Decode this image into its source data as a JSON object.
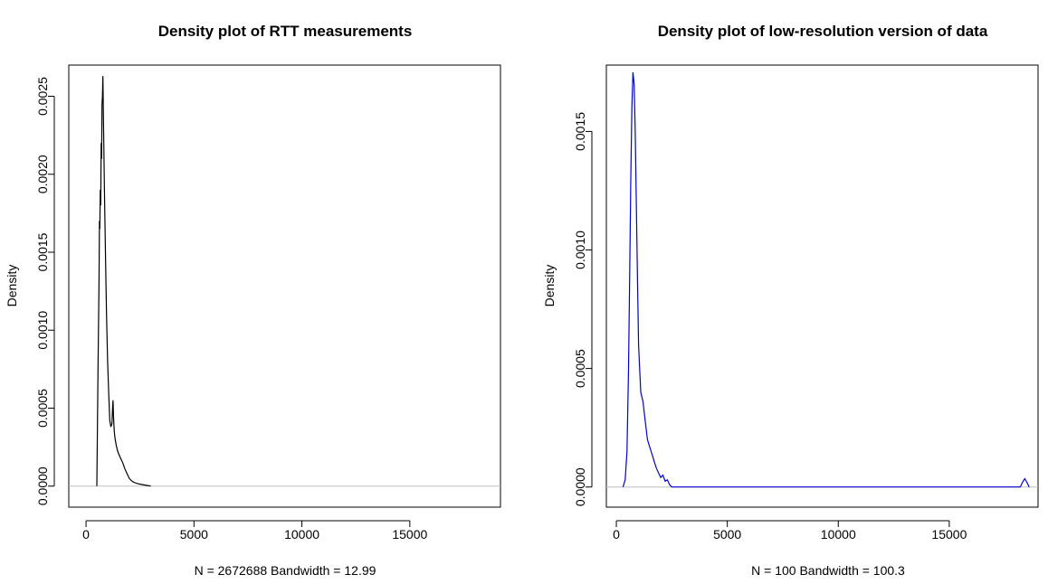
{
  "chart_data": [
    {
      "type": "line",
      "title": "Density plot of RTT measurements",
      "xlabel": "N = 2672688   Bandwidth = 12.99",
      "ylabel": "Density",
      "xlim": [
        -800,
        19200
      ],
      "ylim": [
        -0.000135,
        0.0027
      ],
      "x_ticks": [
        0,
        5000,
        10000,
        15000
      ],
      "x_tick_labels": [
        "0",
        "5000",
        "10000",
        "15000"
      ],
      "y_ticks": [
        0,
        0.0005,
        0.001,
        0.0015,
        0.002,
        0.0025
      ],
      "y_tick_labels": [
        "0.0000",
        "0.0005",
        "0.0010",
        "0.0015",
        "0.0020",
        "0.0025"
      ],
      "grid": false,
      "reference_line_y": 0,
      "series": [
        {
          "color": "#000000",
          "x": [
            500,
            560,
            600,
            620,
            640,
            660,
            680,
            700,
            720,
            740,
            760,
            780,
            800,
            850,
            900,
            950,
            1000,
            1050,
            1100,
            1150,
            1200,
            1230,
            1250,
            1270,
            1290,
            1310,
            1330,
            1350,
            1400,
            1450,
            1500,
            1600,
            1700,
            1800,
            1900,
            2000,
            2100,
            2200,
            2400,
            2600,
            2800,
            3000
          ],
          "y": [
            0.0,
            0.0008,
            0.0013,
            0.0017,
            0.00165,
            0.0019,
            0.0018,
            0.0022,
            0.0021,
            0.00245,
            0.0025,
            0.00263,
            0.0024,
            0.0019,
            0.0015,
            0.0011,
            0.0008,
            0.0006,
            0.00042,
            0.00038,
            0.0004,
            0.0005,
            0.00055,
            0.00045,
            0.0004,
            0.00035,
            0.00032,
            0.0003,
            0.00026,
            0.00023,
            0.00021,
            0.00018,
            0.00015,
            0.00011,
            8e-05,
            5e-05,
            3.5e-05,
            2.5e-05,
            1.5e-05,
            1e-05,
            5e-06,
            0.0
          ]
        }
      ]
    },
    {
      "type": "line",
      "title": "Density plot of low-resolution version of data",
      "xlabel": "N = 100   Bandwidth = 100.3",
      "ylabel": "Density",
      "xlim": [
        -450,
        19000
      ],
      "ylim": [
        -8.5e-05,
        0.00178
      ],
      "x_ticks": [
        0,
        5000,
        10000,
        15000
      ],
      "x_tick_labels": [
        "0",
        "5000",
        "10000",
        "15000"
      ],
      "y_ticks": [
        0,
        0.0005,
        0.001,
        0.0015
      ],
      "y_tick_labels": [
        "0.0000",
        "0.0005",
        "0.0010",
        "0.0015"
      ],
      "grid": false,
      "reference_line_y": 0,
      "series": [
        {
          "color": "#0000cc",
          "x": [
            300,
            400,
            480,
            550,
            600,
            650,
            700,
            750,
            800,
            850,
            900,
            950,
            1000,
            1050,
            1100,
            1200,
            1300,
            1400,
            1500,
            1600,
            1700,
            1800,
            1900,
            2000,
            2100,
            2200,
            2300,
            2400,
            2500,
            2600,
            18200,
            18300,
            18400,
            18500,
            18600
          ],
          "y": [
            0.0,
            3e-05,
            0.00015,
            0.0005,
            0.0009,
            0.0013,
            0.0016,
            0.00175,
            0.0017,
            0.0015,
            0.0012,
            0.0009,
            0.0006,
            0.0005,
            0.0004,
            0.00036,
            0.00028,
            0.0002,
            0.00017,
            0.00014,
            0.00011,
            8e-05,
            6e-05,
            4e-05,
            5e-05,
            2.5e-05,
            3e-05,
            1e-05,
            0.0,
            0.0,
            0.0,
            2e-05,
            3.5e-05,
            2e-05,
            0.0
          ]
        }
      ]
    }
  ]
}
